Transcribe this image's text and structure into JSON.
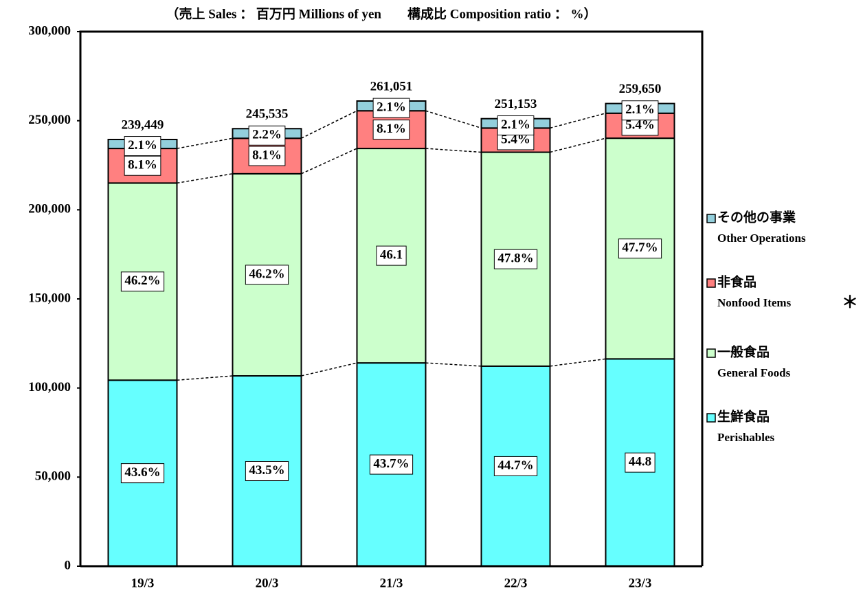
{
  "chart_data": {
    "type": "stacked_bar",
    "title": "（売上 Sales ： 百万円 Millions of yen　　構成比 Composition ratio ： %）",
    "categories": [
      "19/3",
      "20/3",
      "21/3",
      "22/3",
      "23/3"
    ],
    "series": [
      {
        "name": "生鮮食品",
        "name_en": "Perishables",
        "color": "#66ffff",
        "values": [
          104400,
          106808,
          114079,
          112265,
          116323
        ],
        "ratio_labels": [
          "43.6%",
          "43.5%",
          "43.7%",
          "44.7%",
          "44.8"
        ]
      },
      {
        "name": "一般食品",
        "name_en": "General Foods",
        "color": "#ccffcc",
        "values": [
          110625,
          113437,
          120345,
          120051,
          123853
        ],
        "ratio_labels": [
          "46.2%",
          "46.2%",
          "46.1",
          "47.8%",
          "47.7%"
        ]
      },
      {
        "name": "非食品",
        "name_en": "Nonfood Items",
        "note_mark": "＊",
        "color": "#ff8080",
        "values": [
          19395,
          19888,
          21145,
          13562,
          14021
        ],
        "ratio_labels": [
          "8.1%",
          "8.1%",
          "8.1%",
          "5.4%",
          "5.4%"
        ]
      },
      {
        "name": "その他の事業",
        "name_en": "Other Operations",
        "color": "#93cfdc",
        "values": [
          5029,
          5402,
          5482,
          5275,
          5453
        ],
        "ratio_labels": [
          "2.1%",
          "2.2%",
          "2.1%",
          "2.1%",
          "2.1%"
        ]
      }
    ],
    "totals": [
      239449,
      245535,
      261051,
      251153,
      259650
    ],
    "total_labels": [
      "239,449",
      "245,535",
      "261,051",
      "251,153",
      "259,650"
    ],
    "ylim": [
      0,
      300000
    ],
    "yticks": [
      0,
      {
        "value": 50000,
        "label": "50,000"
      },
      {
        "value": 100000,
        "label": "100,000"
      },
      {
        "value": 150000,
        "label": "150,000"
      },
      {
        "value": 200000,
        "label": "200,000"
      },
      {
        "value": 250000,
        "label": "250,000"
      },
      {
        "value": 300000,
        "label": "300,000"
      }
    ],
    "legend": "right"
  }
}
